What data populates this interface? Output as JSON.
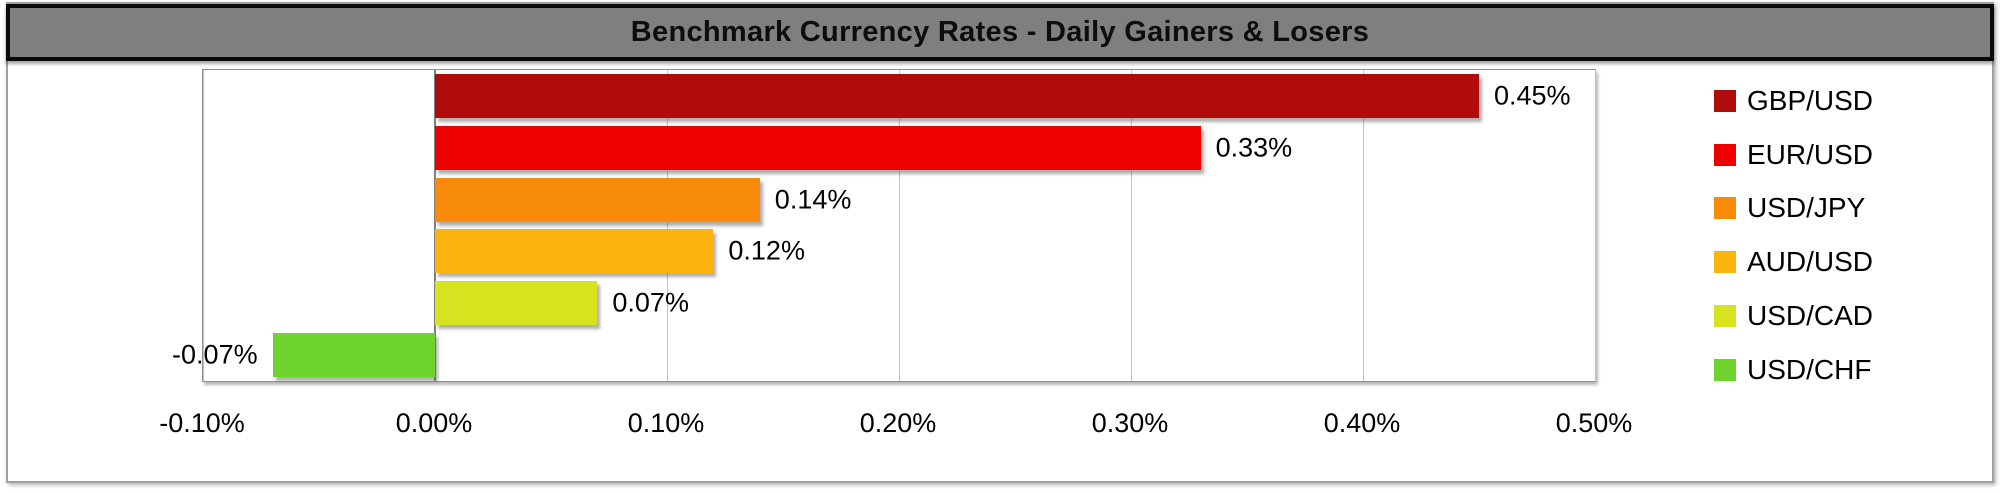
{
  "title": "Benchmark Currency Rates - Daily Gainers & Losers",
  "colors": {
    "title_bg": "#7f7f7f",
    "title_border": "#0a0a0a",
    "title_text": "#0d0d0d",
    "plot_border": "#8f8f8f",
    "gridline": "#c0c0c0",
    "zero_axis_line": "#7f7f7f",
    "label_text": "#000000",
    "chart_background": "#ffffff"
  },
  "chart_data": {
    "type": "bar",
    "orientation": "horizontal",
    "title": "Benchmark Currency Rates - Daily Gainers & Losers",
    "categories": [
      "GBP/USD",
      "EUR/USD",
      "USD/JPY",
      "AUD/USD",
      "USD/CAD",
      "USD/CHF"
    ],
    "values": [
      0.45,
      0.33,
      0.14,
      0.12,
      0.07,
      -0.07
    ],
    "data_labels": [
      "0.45%",
      "0.33%",
      "0.14%",
      "0.12%",
      "0.07%",
      "-0.07%"
    ],
    "bar_colors": [
      "#b00c0c",
      "#ef0000",
      "#f98b0b",
      "#fbb40d",
      "#d8e320",
      "#6fd32e"
    ],
    "xlabel": "",
    "ylabel": "",
    "xlim": [
      -0.1,
      0.5
    ],
    "x_ticks": [
      "-0.10%",
      "0.00%",
      "0.10%",
      "0.20%",
      "0.30%",
      "0.40%",
      "0.50%"
    ],
    "x_tick_values": [
      -0.1,
      0.0,
      0.1,
      0.2,
      0.3,
      0.4,
      0.5
    ],
    "grid": true,
    "legend_position": "right"
  }
}
